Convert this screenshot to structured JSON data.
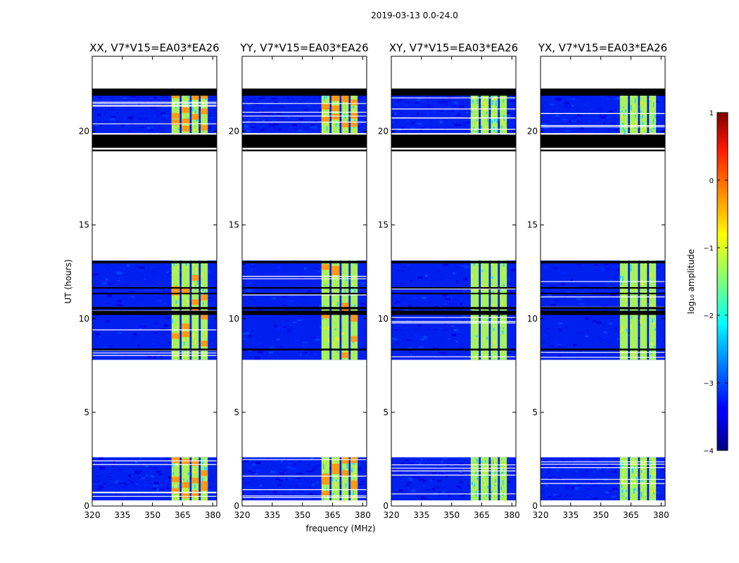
{
  "figure": {
    "suptitle": "2019-03-13 0.0-24.0"
  },
  "chart_data": {
    "type": "heatmap",
    "suptitle": "2019-03-13 0.0-24.0",
    "xlabel": "frequency (MHz)",
    "ylabel": "UT (hours)",
    "xlim": [
      320,
      382
    ],
    "ylim": [
      0,
      24
    ],
    "xticks": [
      "320",
      "335",
      "350",
      "365",
      "380"
    ],
    "yticks": [
      "0",
      "5",
      "10",
      "15",
      "20"
    ],
    "panels": [
      {
        "title": "XX, V7*V15=EA03*EA26",
        "strong_band_mhz": [
          360,
          380
        ],
        "hot_spots": true
      },
      {
        "title": "YY, V7*V15=EA03*EA26",
        "strong_band_mhz": [
          360,
          380
        ],
        "hot_spots": true
      },
      {
        "title": "XY, V7*V15=EA03*EA26",
        "strong_band_mhz": [
          360,
          380
        ],
        "hot_spots": false
      },
      {
        "title": "YX, V7*V15=EA03*EA26",
        "strong_band_mhz": [
          360,
          380
        ],
        "hot_spots": false
      }
    ],
    "data_time_blocks_hours": [
      [
        0.3,
        2.6
      ],
      [
        7.8,
        13.1
      ],
      [
        19.9,
        22.1
      ]
    ],
    "flagged_black_blocks_hours": [
      [
        18.9,
        19.0
      ],
      [
        19.1,
        19.8
      ],
      [
        21.9,
        22.3
      ],
      [
        10.3,
        10.6
      ]
    ],
    "band_columns_mhz": [
      [
        359.5,
        363.5
      ],
      [
        364.5,
        368.5
      ],
      [
        369.5,
        373
      ],
      [
        374,
        377.5
      ]
    ],
    "colorbar": {
      "label": "log₁₀ amplitude",
      "range": [
        -4,
        1
      ],
      "ticks": [
        "1",
        "0",
        "−1",
        "−2",
        "−3",
        "−4"
      ],
      "colormap": "jet"
    }
  }
}
